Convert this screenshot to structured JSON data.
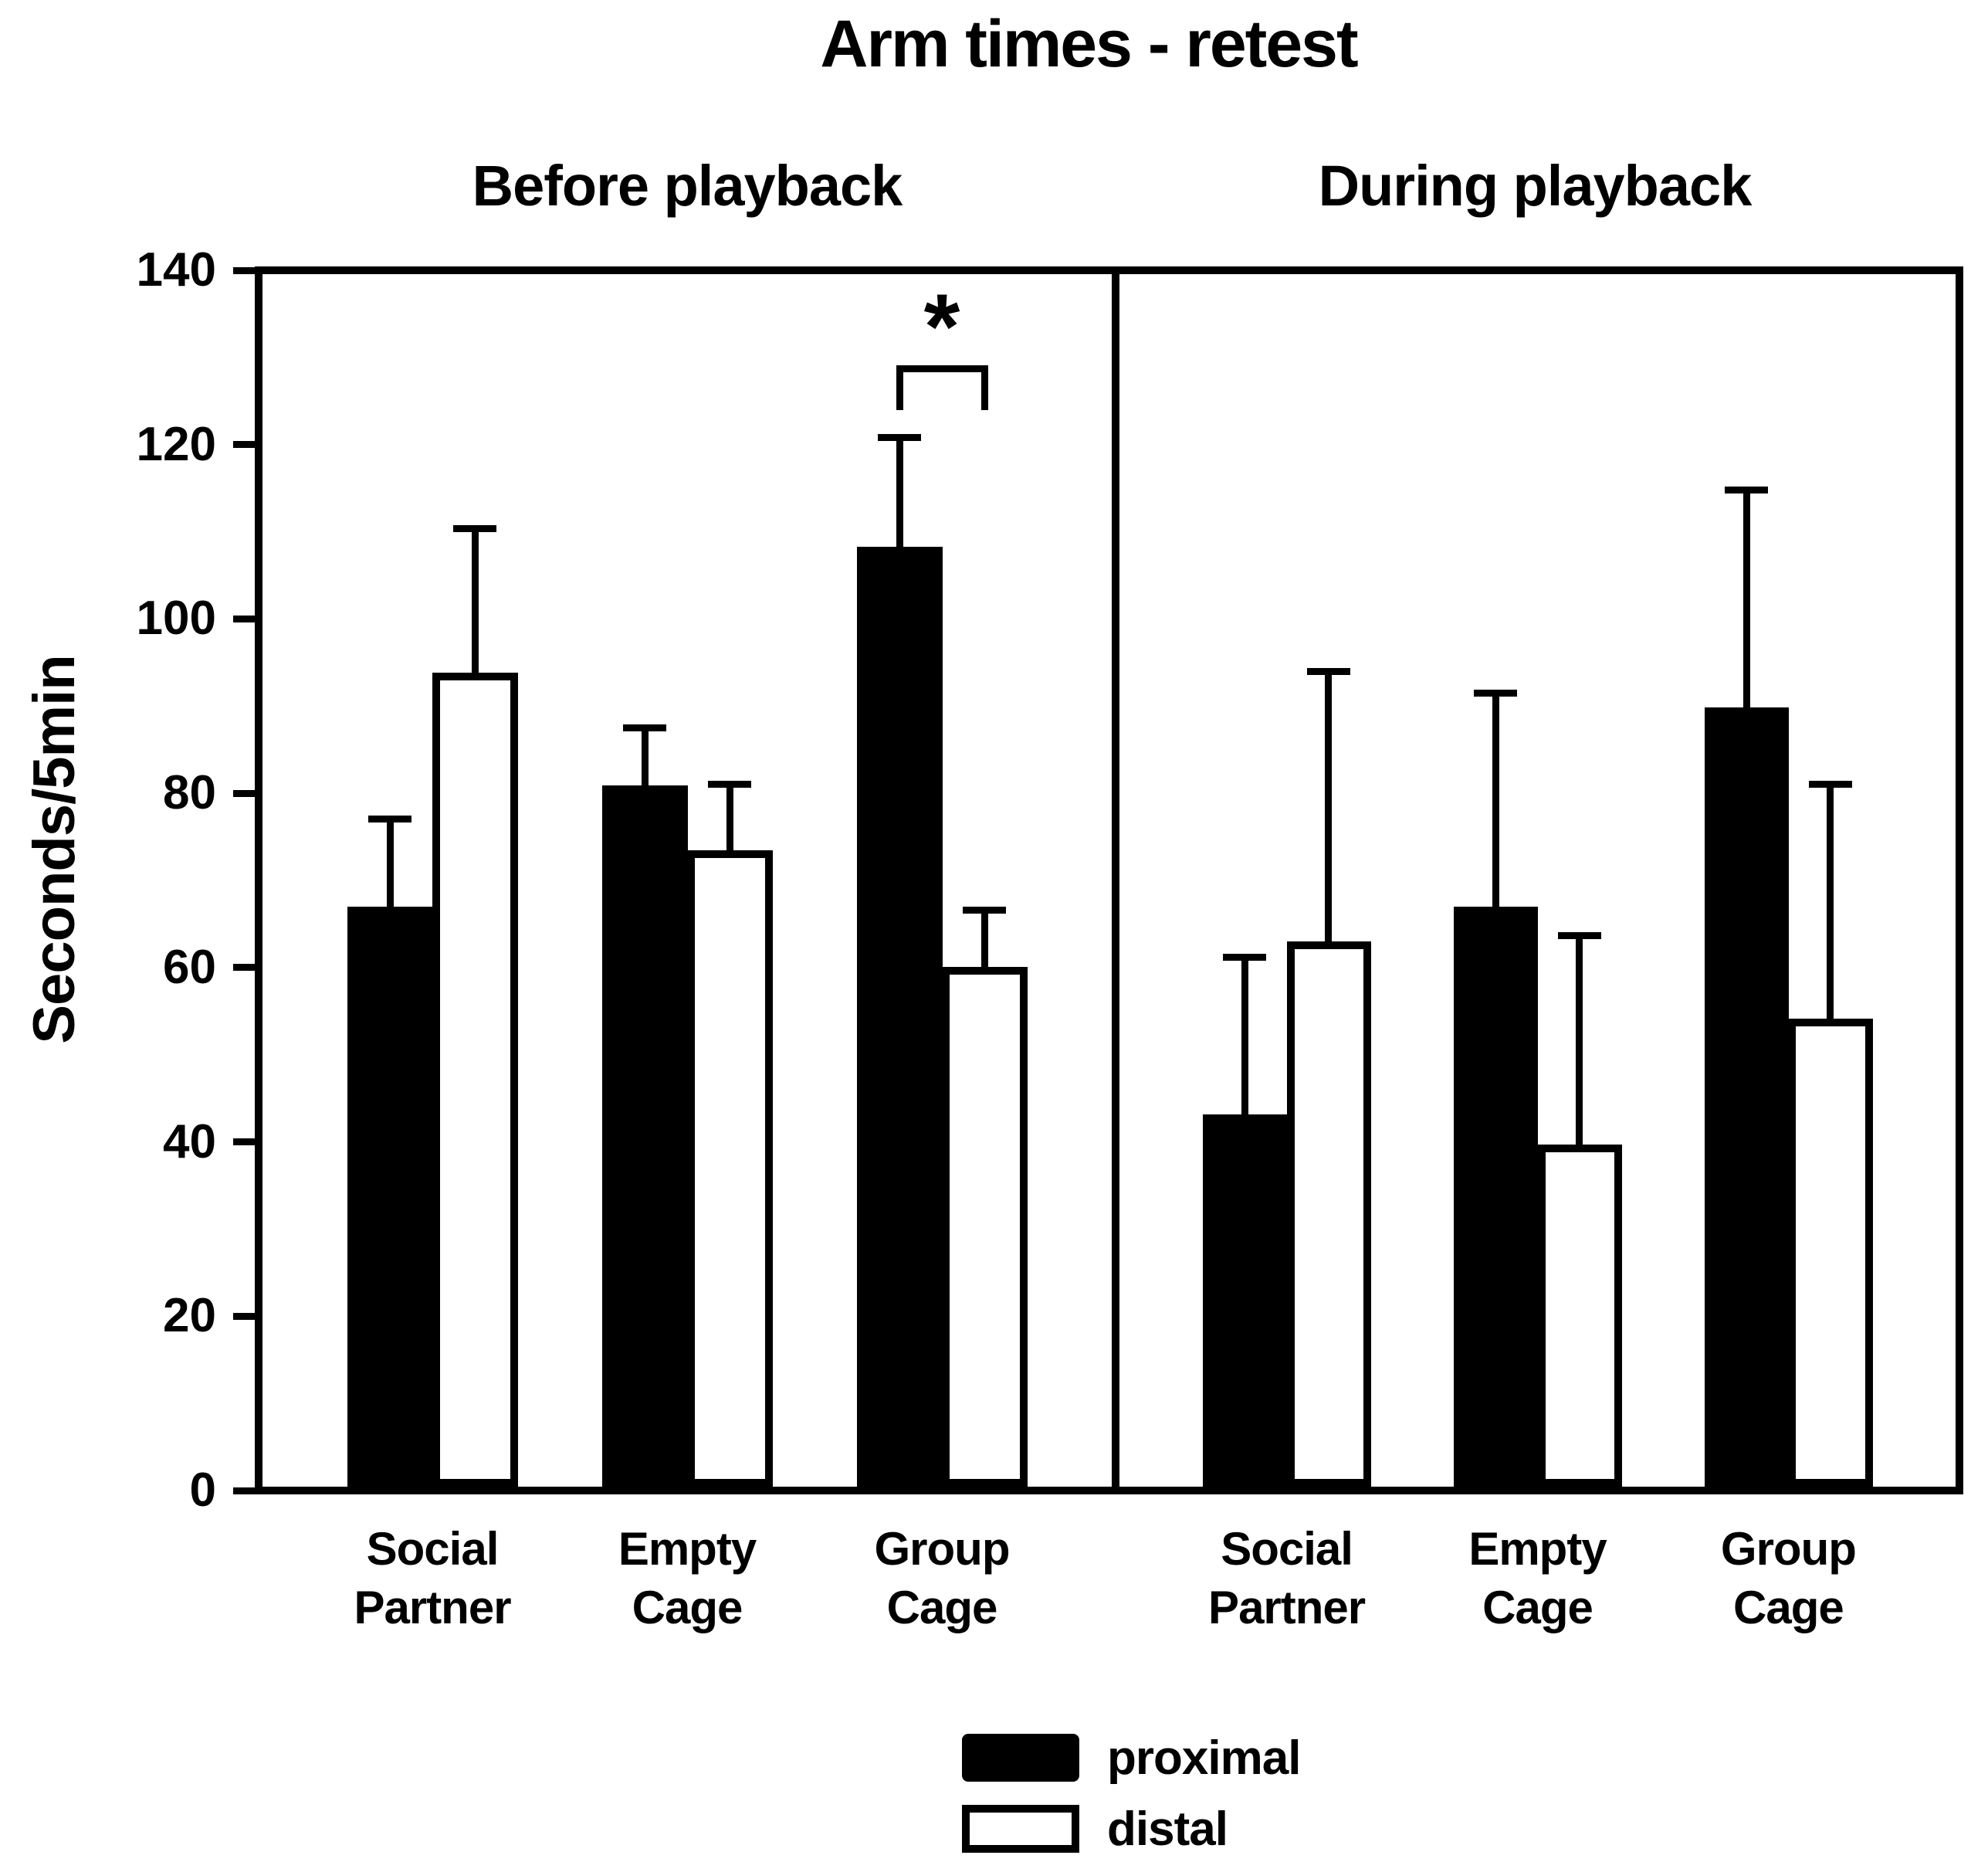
{
  "chart_data": {
    "type": "bar",
    "title": "Arm times - retest",
    "ylabel": "Seconds/5min",
    "xlabel": "",
    "ylim": [
      0,
      140
    ],
    "yticks": [
      0,
      20,
      40,
      60,
      80,
      100,
      120,
      140
    ],
    "grid": false,
    "legend_position": "bottom-center",
    "panels": [
      {
        "label": "Before playback",
        "categories": [
          [
            "Social",
            "Partner"
          ],
          [
            "Empty",
            "Cage"
          ],
          [
            "Group",
            "Cage"
          ]
        ],
        "series": [
          {
            "name": "proximal",
            "fill": "#000000",
            "values": [
              67,
              81,
              108.5
            ],
            "errors_up": [
              10.5,
              7,
              13
            ]
          },
          {
            "name": "distal",
            "fill": "#ffffff",
            "values": [
              94,
              73.5,
              60
            ],
            "errors_up": [
              17,
              8,
              7
            ]
          }
        ],
        "significance": {
          "symbol": "*",
          "category_index": 2,
          "between": [
            "proximal",
            "distal"
          ],
          "bracket_y": 129.5,
          "leg_drop": 5.2
        }
      },
      {
        "label": "During playback",
        "categories": [
          [
            "Social",
            "Partner"
          ],
          [
            "Empty",
            "Cage"
          ],
          [
            "Group",
            "Cage"
          ]
        ],
        "series": [
          {
            "name": "proximal",
            "fill": "#000000",
            "values": [
              43,
              67,
              90
            ],
            "errors_up": [
              18.5,
              25,
              25.5
            ]
          },
          {
            "name": "distal",
            "fill": "#ffffff",
            "values": [
              63,
              39.5,
              54
            ],
            "errors_up": [
              31.5,
              24.5,
              27.5
            ]
          }
        ]
      }
    ],
    "legend": [
      {
        "label": "proximal",
        "fill": "#000000"
      },
      {
        "label": "distal",
        "fill": "#ffffff"
      }
    ]
  }
}
